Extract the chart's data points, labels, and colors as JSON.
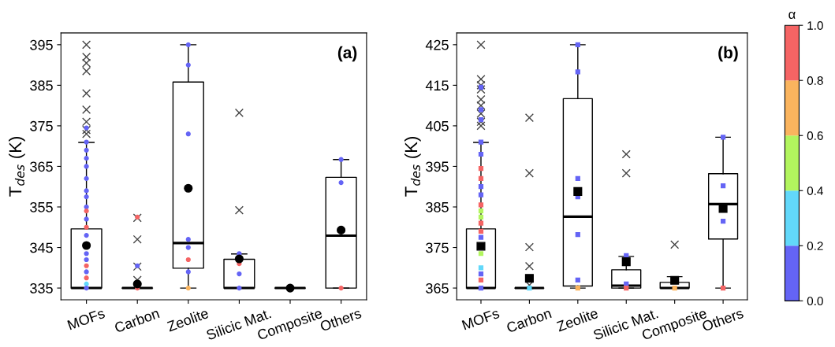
{
  "chart_data": [
    {
      "type": "box",
      "title": "(a)",
      "ylabel": "T$_{des}$ (K)",
      "categories": [
        "MOFs",
        "Carbon",
        "Zeolite",
        "Silicic Mat.",
        "Composite",
        "Others"
      ],
      "ylim": [
        332.1,
        397.9
      ],
      "yticks": [
        335,
        345,
        355,
        365,
        375,
        385,
        395
      ],
      "boxes": [
        {
          "low": 335,
          "q1": 335,
          "median": 335,
          "q3": 349.6,
          "high": 370.9,
          "mean": 345.5,
          "outliers": [
            395,
            392,
            390.5,
            388.5,
            383,
            379,
            376,
            374,
            373
          ]
        },
        {
          "low": 335,
          "q1": 335,
          "median": 335,
          "q3": 335,
          "high": 335,
          "mean": 336,
          "outliers": [
            352.3,
            347,
            340.3,
            337
          ]
        },
        {
          "low": 335,
          "q1": 339.9,
          "median": 346.1,
          "q3": 385.8,
          "high": 395,
          "mean": 359.6
        },
        {
          "low": 335,
          "q1": 335,
          "median": 335,
          "q3": 342.1,
          "high": 343.4,
          "mean": 342.2,
          "outliers": [
            378.2,
            354.2
          ]
        },
        {
          "low": 335,
          "q1": 335,
          "median": 335,
          "q3": 335,
          "high": 335,
          "mean": 335
        },
        {
          "low": 335,
          "q1": 335,
          "median": 347.9,
          "q3": 362.3,
          "high": 366.7,
          "mean": 349.3
        }
      ],
      "series": [
        {
          "type": "scatter",
          "marker": "circle",
          "x": [
            "MOFs",
            "MOFs",
            "MOFs",
            "MOFs",
            "MOFs",
            "MOFs",
            "MOFs",
            "MOFs",
            "MOFs",
            "MOFs",
            "MOFs",
            "MOFs",
            "MOFs",
            "MOFs",
            "MOFs",
            "MOFs",
            "MOFs",
            "MOFs",
            "MOFs",
            "MOFs",
            "Carbon",
            "Carbon",
            "Carbon",
            "Zeolite",
            "Zeolite",
            "Zeolite",
            "Zeolite",
            "Zeolite",
            "Zeolite",
            "Zeolite",
            "Zeolite",
            "Silicic Mat.",
            "Silicic Mat.",
            "Silicic Mat.",
            "Silicic Mat.",
            "Others",
            "Others",
            "Others"
          ],
          "values": [
            374.5,
            371,
            369,
            367,
            365,
            362,
            359,
            357.5,
            355,
            354,
            352,
            350,
            348,
            343.5,
            342,
            340.5,
            339,
            337.5,
            336,
            335,
            352.5,
            340.5,
            335,
            395,
            390,
            373,
            347,
            345,
            342,
            339,
            335,
            343.5,
            341,
            338.5,
            335,
            366.7,
            361,
            335
          ],
          "colors": [
            "#6464f5",
            "#6464f5",
            "#6464f5",
            "#6464f5",
            "#6464f5",
            "#6464f5",
            "#6464f5",
            "#6464f5",
            "#6464f5",
            "#f56464",
            "#6464f5",
            "#f56464",
            "#6464f5",
            "#6464f5",
            "#6464f5",
            "#f56464",
            "#6464f5",
            "#f56464",
            "#62d8fa",
            "#6464f5",
            "#f56464",
            "#6464f5",
            "#f56464",
            "#6464f5",
            "#6464f5",
            "#6464f5",
            "#6464f5",
            "#6464f5",
            "#f56464",
            "#6464f5",
            "#fab45e",
            "#6464f5",
            "#f56464",
            "#6464f5",
            "#6464f5",
            "#6464f5",
            "#6464f5",
            "#f56464"
          ]
        }
      ]
    },
    {
      "type": "box",
      "title": "(b)",
      "ylabel": "T$_{des}$ (K)",
      "categories": [
        "MOFs",
        "Carbon",
        "Zeolite",
        "Silicic Mat.",
        "Composite",
        "Others"
      ],
      "ylim": [
        362.1,
        427.9
      ],
      "yticks": [
        365,
        375,
        385,
        395,
        405,
        415,
        425
      ],
      "clabel": "α",
      "clim": [
        0,
        1
      ],
      "cticks": [
        {
          "value": 0,
          "label": "0.0"
        },
        0.2,
        0.4,
        0.6,
        0.8,
        {
          "value": 1,
          "label": "1.0"
        }
      ],
      "boxes": [
        {
          "low": 365,
          "q1": 365,
          "median": 365,
          "q3": 379.6,
          "high": 400.9,
          "mean": 375.3,
          "outliers": [
            425,
            416.5,
            415,
            414,
            411.5,
            410,
            408,
            406,
            405
          ]
        },
        {
          "low": 365,
          "q1": 365,
          "median": 365,
          "q3": 365,
          "high": 365,
          "mean": 367.4,
          "outliers": [
            407,
            393.3,
            375.1,
            370.4,
            365.7
          ]
        },
        {
          "low": 365,
          "q1": 365.5,
          "median": 382.6,
          "q3": 411.7,
          "high": 425,
          "mean": 388.8
        },
        {
          "low": 365,
          "q1": 365,
          "median": 365.6,
          "q3": 369.5,
          "high": 372.8,
          "mean": 371.5,
          "outliers": [
            398,
            393.3
          ]
        },
        {
          "low": 365,
          "q1": 365,
          "median": 365,
          "q3": 366.4,
          "high": 367.8,
          "mean": 366.9,
          "outliers": [
            375.7
          ]
        },
        {
          "low": 365,
          "q1": 377.1,
          "median": 385.7,
          "q3": 393.2,
          "high": 402.2,
          "mean": 384.6
        }
      ],
      "series": [
        {
          "type": "scatter",
          "marker": "square",
          "x": [
            "MOFs",
            "MOFs",
            "MOFs",
            "MOFs",
            "MOFs",
            "MOFs",
            "MOFs",
            "MOFs",
            "MOFs",
            "MOFs",
            "MOFs",
            "MOFs",
            "MOFs",
            "MOFs",
            "MOFs",
            "MOFs",
            "MOFs",
            "MOFs",
            "MOFs",
            "MOFs",
            "Carbon",
            "Zeolite",
            "Zeolite",
            "Zeolite",
            "Zeolite",
            "Zeolite",
            "Zeolite",
            "Zeolite",
            "Silicic Mat.",
            "Silicic Mat.",
            "Silicic Mat.",
            "Composite",
            "Composite",
            "Others",
            "Others",
            "Others",
            "Others"
          ],
          "values": [
            414.5,
            409,
            406.5,
            401,
            398,
            394.5,
            392,
            390,
            388,
            385.5,
            384,
            382.5,
            381,
            379,
            377.5,
            373.5,
            370,
            368.5,
            367,
            365,
            365,
            425,
            418.3,
            392,
            387.5,
            378.2,
            367,
            365,
            373,
            366,
            365,
            null,
            365,
            402.2,
            390.2,
            381.5,
            365
          ],
          "colors": [
            "#6464f5",
            "#6464f5",
            "#6464f5",
            "#6464f5",
            "#6464f5",
            "#f56464",
            "#f56464",
            "#6464f5",
            "#6464f5",
            "#f56464",
            "#b2f55e",
            "#b2f55e",
            "#f56464",
            "#f56464",
            "#6464f5",
            "#b2f55e",
            "#62d8fa",
            "#6464f5",
            "#f56464",
            "#6464f5",
            "#62d8fa",
            "#6464f5",
            "#6464f5",
            "#6464f5",
            "#6464f5",
            "#6464f5",
            "#6464f5",
            "#fab45e",
            "#6464f5",
            "#6464f5",
            "#f56464",
            "#b2f55e",
            "#fab45e",
            "#6464f5",
            "#6464f5",
            "#6464f5",
            "#f56464"
          ]
        }
      ]
    }
  ]
}
